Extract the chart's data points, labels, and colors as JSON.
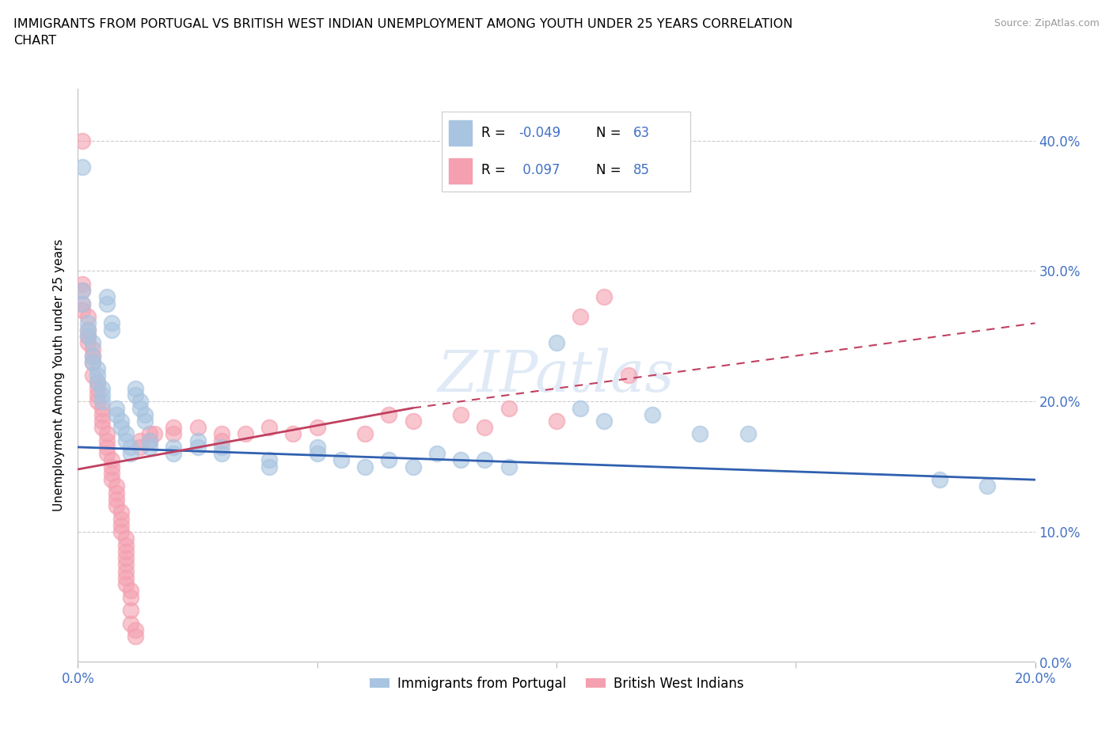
{
  "title": "IMMIGRANTS FROM PORTUGAL VS BRITISH WEST INDIAN UNEMPLOYMENT AMONG YOUTH UNDER 25 YEARS CORRELATION\nCHART",
  "source": "Source: ZipAtlas.com",
  "ylabel": "Unemployment Among Youth under 25 years",
  "right_ytick_labels": [
    "0.0%",
    "10.0%",
    "20.0%",
    "30.0%",
    "40.0%"
  ],
  "right_ytick_vals": [
    0.0,
    0.1,
    0.2,
    0.3,
    0.4
  ],
  "xlim": [
    0.0,
    0.2
  ],
  "ylim": [
    0.0,
    0.44
  ],
  "blue_color": "#a8c4e0",
  "pink_color": "#f4a0b0",
  "blue_line_color": "#3060b0",
  "pink_line_color": "#c04060",
  "watermark": "ZIPatlas",
  "legend_label_blue": "Immigrants from Portugal",
  "legend_label_pink": "British West Indians",
  "blue_points": [
    [
      0.001,
      0.38
    ],
    [
      0.001,
      0.285
    ],
    [
      0.001,
      0.275
    ],
    [
      0.002,
      0.26
    ],
    [
      0.002,
      0.255
    ],
    [
      0.002,
      0.25
    ],
    [
      0.003,
      0.245
    ],
    [
      0.003,
      0.235
    ],
    [
      0.003,
      0.23
    ],
    [
      0.004,
      0.225
    ],
    [
      0.004,
      0.22
    ],
    [
      0.004,
      0.215
    ],
    [
      0.005,
      0.21
    ],
    [
      0.005,
      0.205
    ],
    [
      0.005,
      0.2
    ],
    [
      0.006,
      0.28
    ],
    [
      0.006,
      0.275
    ],
    [
      0.007,
      0.26
    ],
    [
      0.007,
      0.255
    ],
    [
      0.008,
      0.195
    ],
    [
      0.008,
      0.19
    ],
    [
      0.009,
      0.185
    ],
    [
      0.009,
      0.18
    ],
    [
      0.01,
      0.175
    ],
    [
      0.01,
      0.17
    ],
    [
      0.011,
      0.165
    ],
    [
      0.011,
      0.16
    ],
    [
      0.012,
      0.21
    ],
    [
      0.012,
      0.205
    ],
    [
      0.013,
      0.2
    ],
    [
      0.013,
      0.195
    ],
    [
      0.014,
      0.19
    ],
    [
      0.014,
      0.185
    ],
    [
      0.015,
      0.17
    ],
    [
      0.015,
      0.165
    ],
    [
      0.02,
      0.165
    ],
    [
      0.02,
      0.16
    ],
    [
      0.025,
      0.17
    ],
    [
      0.025,
      0.165
    ],
    [
      0.03,
      0.165
    ],
    [
      0.03,
      0.16
    ],
    [
      0.04,
      0.155
    ],
    [
      0.04,
      0.15
    ],
    [
      0.05,
      0.165
    ],
    [
      0.05,
      0.16
    ],
    [
      0.055,
      0.155
    ],
    [
      0.06,
      0.15
    ],
    [
      0.065,
      0.155
    ],
    [
      0.07,
      0.15
    ],
    [
      0.075,
      0.16
    ],
    [
      0.08,
      0.155
    ],
    [
      0.085,
      0.155
    ],
    [
      0.09,
      0.15
    ],
    [
      0.1,
      0.245
    ],
    [
      0.105,
      0.195
    ],
    [
      0.11,
      0.185
    ],
    [
      0.12,
      0.19
    ],
    [
      0.13,
      0.175
    ],
    [
      0.14,
      0.175
    ],
    [
      0.18,
      0.14
    ],
    [
      0.19,
      0.135
    ]
  ],
  "pink_points": [
    [
      0.001,
      0.4
    ],
    [
      0.001,
      0.29
    ],
    [
      0.001,
      0.285
    ],
    [
      0.001,
      0.275
    ],
    [
      0.001,
      0.27
    ],
    [
      0.002,
      0.265
    ],
    [
      0.002,
      0.255
    ],
    [
      0.002,
      0.25
    ],
    [
      0.002,
      0.245
    ],
    [
      0.003,
      0.24
    ],
    [
      0.003,
      0.235
    ],
    [
      0.003,
      0.23
    ],
    [
      0.003,
      0.22
    ],
    [
      0.004,
      0.215
    ],
    [
      0.004,
      0.21
    ],
    [
      0.004,
      0.205
    ],
    [
      0.004,
      0.2
    ],
    [
      0.005,
      0.195
    ],
    [
      0.005,
      0.19
    ],
    [
      0.005,
      0.185
    ],
    [
      0.005,
      0.18
    ],
    [
      0.006,
      0.175
    ],
    [
      0.006,
      0.17
    ],
    [
      0.006,
      0.165
    ],
    [
      0.006,
      0.16
    ],
    [
      0.007,
      0.155
    ],
    [
      0.007,
      0.15
    ],
    [
      0.007,
      0.145
    ],
    [
      0.007,
      0.14
    ],
    [
      0.008,
      0.135
    ],
    [
      0.008,
      0.13
    ],
    [
      0.008,
      0.125
    ],
    [
      0.008,
      0.12
    ],
    [
      0.009,
      0.115
    ],
    [
      0.009,
      0.11
    ],
    [
      0.009,
      0.105
    ],
    [
      0.009,
      0.1
    ],
    [
      0.01,
      0.095
    ],
    [
      0.01,
      0.09
    ],
    [
      0.01,
      0.085
    ],
    [
      0.01,
      0.08
    ],
    [
      0.01,
      0.075
    ],
    [
      0.01,
      0.07
    ],
    [
      0.01,
      0.065
    ],
    [
      0.01,
      0.06
    ],
    [
      0.011,
      0.055
    ],
    [
      0.011,
      0.05
    ],
    [
      0.011,
      0.04
    ],
    [
      0.011,
      0.03
    ],
    [
      0.012,
      0.025
    ],
    [
      0.012,
      0.02
    ],
    [
      0.013,
      0.17
    ],
    [
      0.013,
      0.165
    ],
    [
      0.015,
      0.175
    ],
    [
      0.015,
      0.17
    ],
    [
      0.016,
      0.175
    ],
    [
      0.02,
      0.18
    ],
    [
      0.02,
      0.175
    ],
    [
      0.025,
      0.18
    ],
    [
      0.03,
      0.175
    ],
    [
      0.03,
      0.17
    ],
    [
      0.035,
      0.175
    ],
    [
      0.04,
      0.18
    ],
    [
      0.045,
      0.175
    ],
    [
      0.05,
      0.18
    ],
    [
      0.06,
      0.175
    ],
    [
      0.065,
      0.19
    ],
    [
      0.07,
      0.185
    ],
    [
      0.08,
      0.19
    ],
    [
      0.085,
      0.18
    ],
    [
      0.09,
      0.195
    ],
    [
      0.1,
      0.185
    ],
    [
      0.105,
      0.265
    ],
    [
      0.11,
      0.28
    ],
    [
      0.115,
      0.22
    ]
  ],
  "blue_line": [
    [
      0.0,
      0.165
    ],
    [
      0.2,
      0.14
    ]
  ],
  "pink_line": [
    [
      0.0,
      0.148
    ],
    [
      0.07,
      0.195
    ]
  ],
  "pink_line_dashed": [
    [
      0.07,
      0.195
    ],
    [
      0.2,
      0.26
    ]
  ]
}
